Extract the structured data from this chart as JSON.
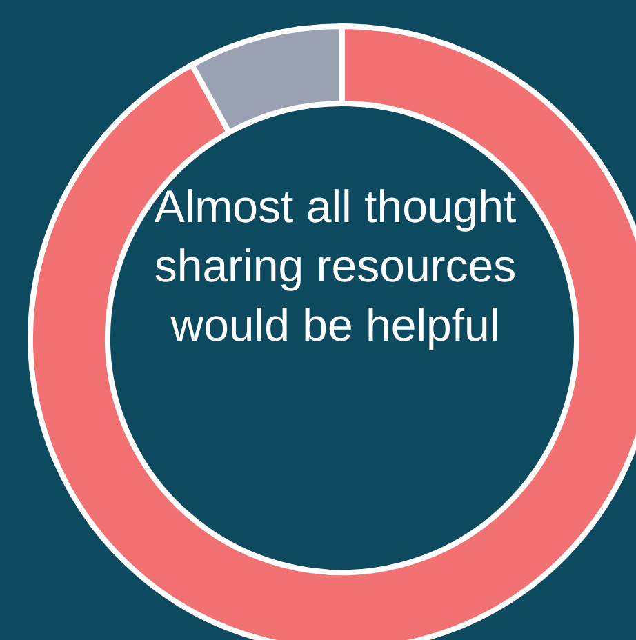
{
  "chart_data": {
    "type": "donut",
    "title": "Almost all thought sharing resources would be helpful",
    "categories": [
      null,
      null
    ],
    "values": [
      92,
      8
    ],
    "colors": [
      "#f27274",
      "#9aa1b2"
    ],
    "legend": false
  }
}
